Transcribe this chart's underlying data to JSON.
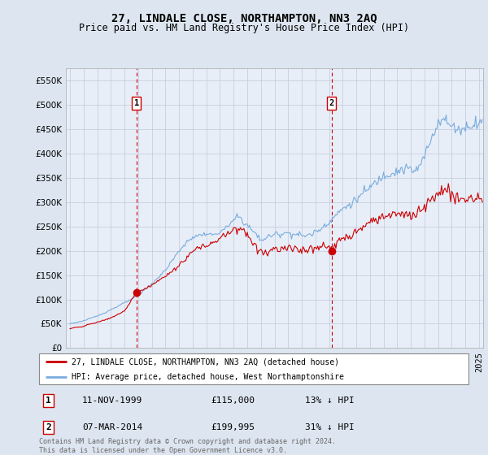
{
  "title": "27, LINDALE CLOSE, NORTHAMPTON, NN3 2AQ",
  "subtitle": "Price paid vs. HM Land Registry's House Price Index (HPI)",
  "bg_color": "#dde6f0",
  "plot_bg_color": "#e8eef8",
  "legend_entry1": "27, LINDALE CLOSE, NORTHAMPTON, NN3 2AQ (detached house)",
  "legend_entry2": "HPI: Average price, detached house, West Northamptonshire",
  "transaction1_date": "11-NOV-1999",
  "transaction1_price": "£115,000",
  "transaction1_pct": "13% ↓ HPI",
  "transaction2_date": "07-MAR-2014",
  "transaction2_price": "£199,995",
  "transaction2_pct": "31% ↓ HPI",
  "footer": "Contains HM Land Registry data © Crown copyright and database right 2024.\nThis data is licensed under the Open Government Licence v3.0.",
  "hpi_color": "#7aadde",
  "price_color": "#cc0000",
  "vline_color": "#cc0000",
  "marker_color": "#cc0000",
  "ylim": [
    0,
    575000
  ],
  "yticks": [
    0,
    50000,
    100000,
    150000,
    200000,
    250000,
    300000,
    350000,
    400000,
    450000,
    500000,
    550000
  ],
  "transaction1_x": 1999.87,
  "transaction1_y": 115000,
  "transaction2_x": 2014.18,
  "transaction2_y": 199995,
  "xmin": 1995.0,
  "xmax": 2025.3
}
